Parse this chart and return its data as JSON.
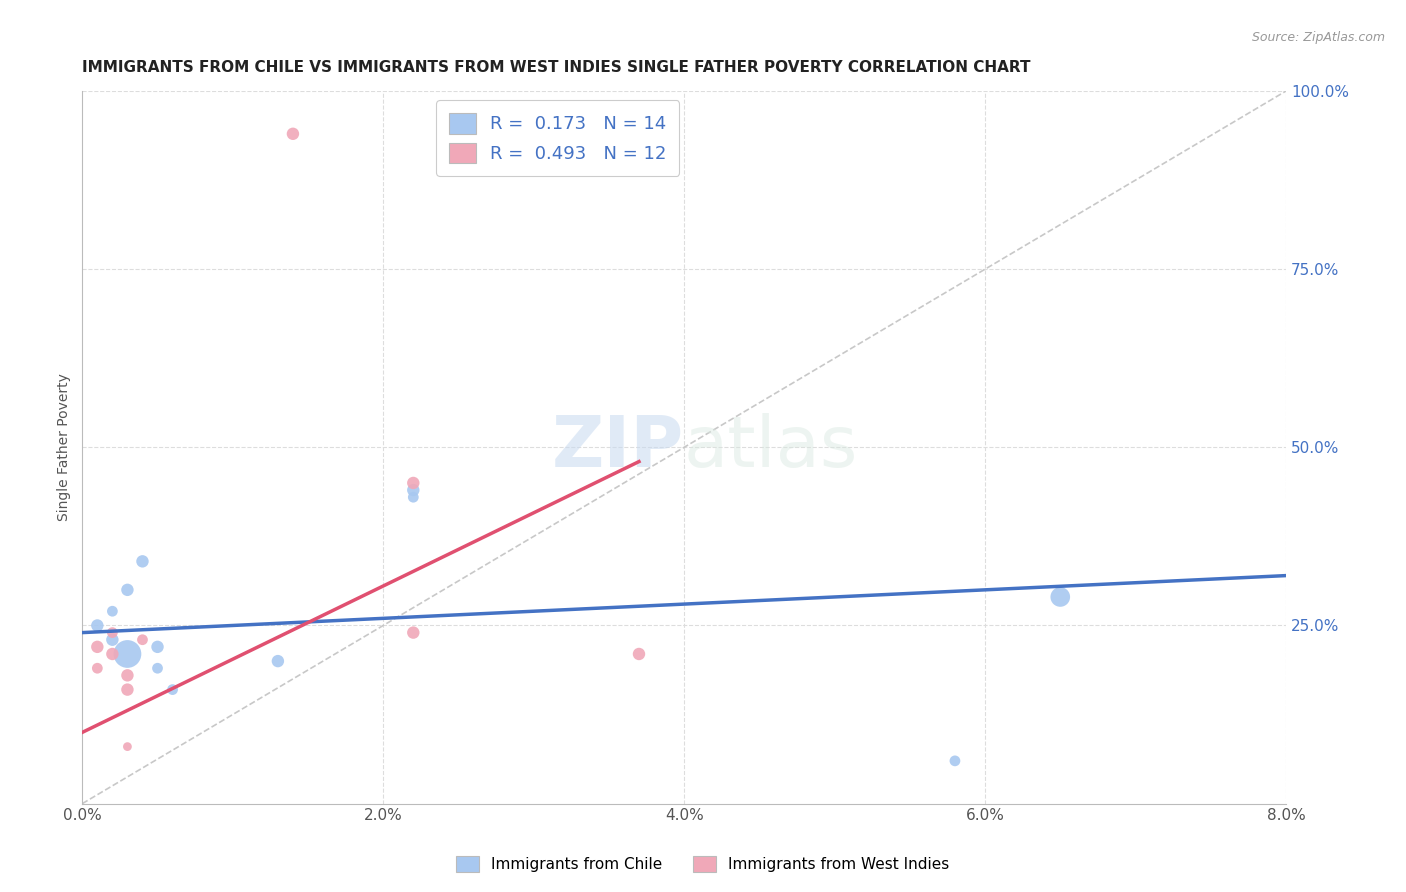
{
  "title": "IMMIGRANTS FROM CHILE VS IMMIGRANTS FROM WEST INDIES SINGLE FATHER POVERTY CORRELATION CHART",
  "source": "Source: ZipAtlas.com",
  "ylabel": "Single Father Poverty",
  "xlim": [
    0.0,
    0.08
  ],
  "ylim": [
    0.0,
    1.0
  ],
  "xtick_labels": [
    "0.0%",
    "2.0%",
    "4.0%",
    "6.0%",
    "8.0%"
  ],
  "xtick_vals": [
    0.0,
    0.02,
    0.04,
    0.06,
    0.08
  ],
  "ytick_labels_right": [
    "100.0%",
    "75.0%",
    "50.0%",
    "25.0%"
  ],
  "ytick_vals_right": [
    1.0,
    0.75,
    0.5,
    0.25
  ],
  "R_chile": 0.173,
  "N_chile": 14,
  "R_westindies": 0.493,
  "N_westindies": 12,
  "chile_color": "#a8c8f0",
  "westindies_color": "#f0a8b8",
  "trendline_chile_color": "#4472c4",
  "trendline_westindies_color": "#e05070",
  "diagonal_color": "#c8c8c8",
  "background_color": "#ffffff",
  "grid_color": "#dddddd",
  "watermark_zip": "ZIP",
  "watermark_atlas": "atlas",
  "chile_x": [
    0.001,
    0.002,
    0.002,
    0.003,
    0.003,
    0.004,
    0.005,
    0.005,
    0.006,
    0.013,
    0.022,
    0.022,
    0.058,
    0.065
  ],
  "chile_y": [
    0.25,
    0.23,
    0.27,
    0.21,
    0.3,
    0.34,
    0.22,
    0.19,
    0.16,
    0.2,
    0.44,
    0.43,
    0.06,
    0.29
  ],
  "chile_size": [
    80,
    80,
    60,
    400,
    80,
    80,
    80,
    60,
    60,
    80,
    80,
    60,
    60,
    200
  ],
  "wi_x": [
    0.001,
    0.001,
    0.002,
    0.002,
    0.003,
    0.003,
    0.003,
    0.004,
    0.014,
    0.022,
    0.022,
    0.037
  ],
  "wi_y": [
    0.22,
    0.19,
    0.24,
    0.21,
    0.18,
    0.16,
    0.08,
    0.23,
    0.94,
    0.45,
    0.24,
    0.21
  ],
  "wi_size": [
    80,
    60,
    60,
    80,
    80,
    80,
    40,
    60,
    80,
    80,
    80,
    80
  ]
}
